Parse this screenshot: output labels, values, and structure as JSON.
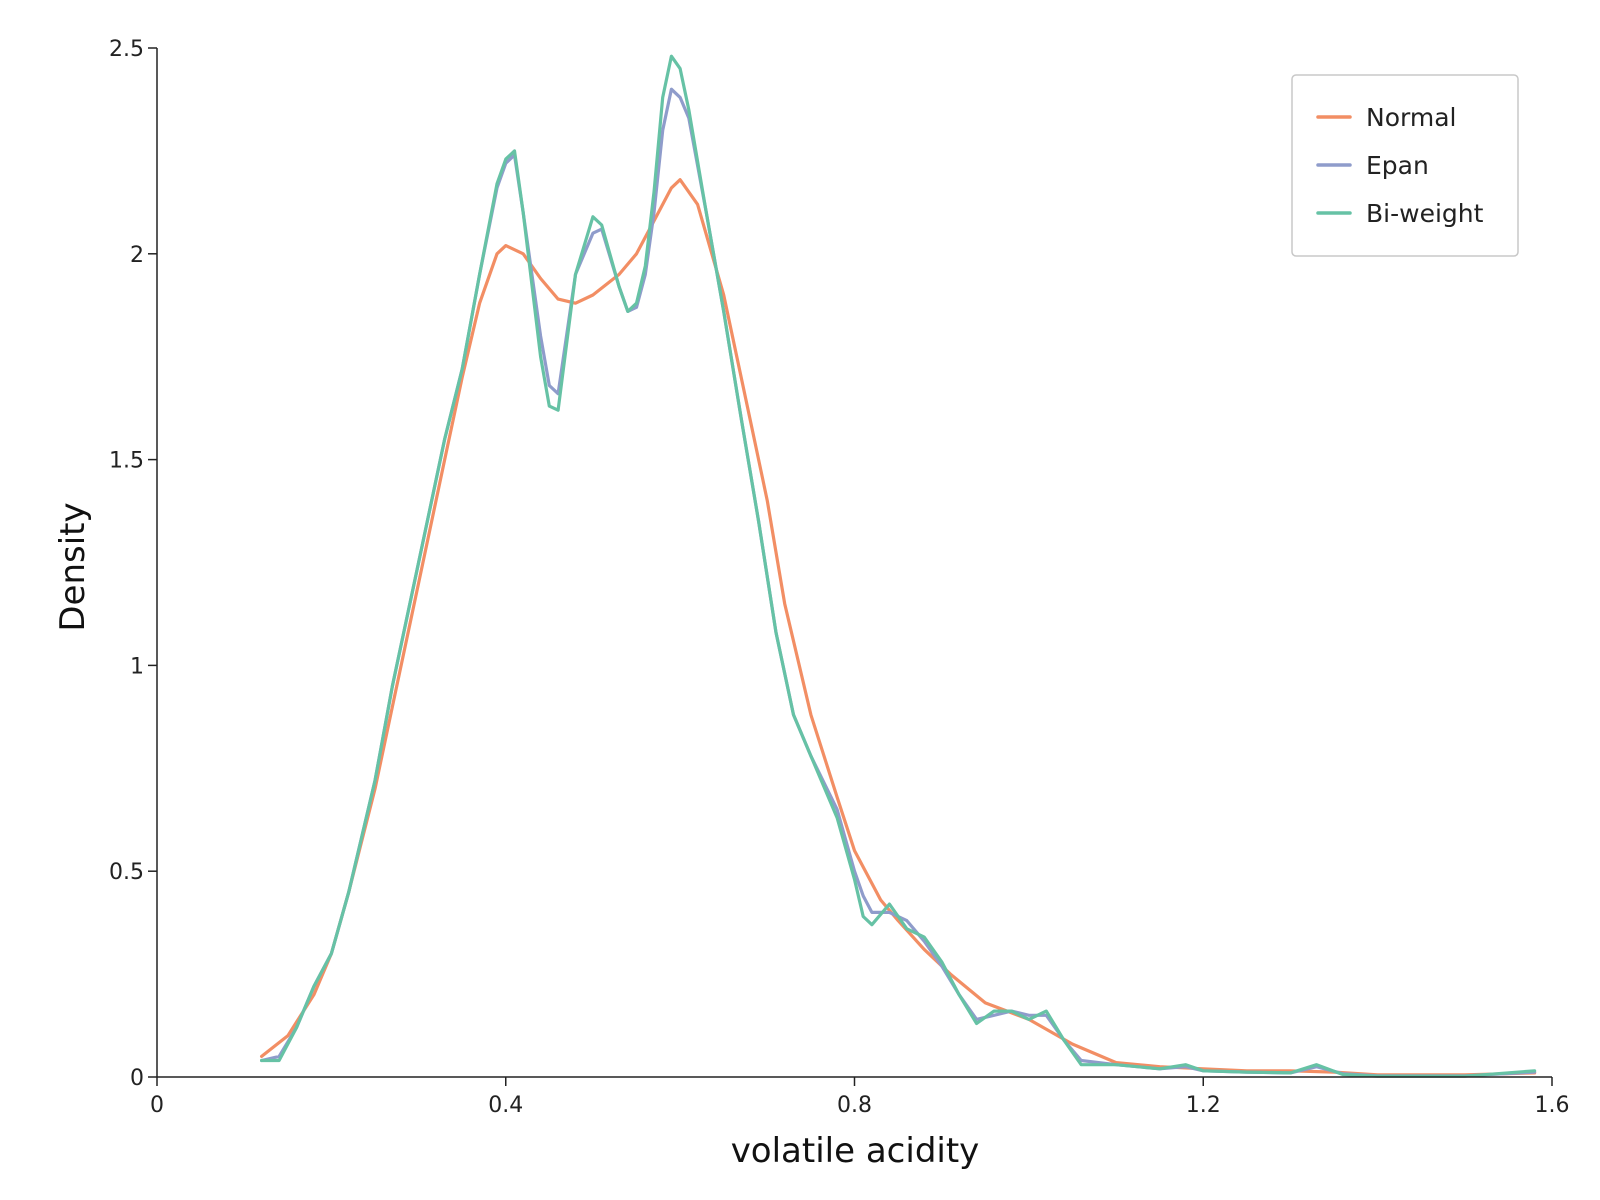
{
  "chart_data": {
    "type": "line",
    "title": "",
    "xlabel": "volatile acidity",
    "ylabel": "Density",
    "xlim": [
      0,
      1.6
    ],
    "ylim": [
      0,
      2.5
    ],
    "x_ticks": [
      0,
      0.4,
      0.8,
      1.2,
      1.6
    ],
    "x_tick_labels": [
      "0",
      "0.4",
      "0.8",
      "1.2",
      "1.6"
    ],
    "y_ticks": [
      0,
      0.5,
      1,
      1.5,
      2,
      2.5
    ],
    "y_tick_labels": [
      "0",
      "0.5",
      "1",
      "1.5",
      "2",
      "2.5"
    ],
    "grid": false,
    "legend_position": "top-right",
    "series": [
      {
        "name": "Normal",
        "color": "#f28e64",
        "points": [
          [
            0.12,
            0.05
          ],
          [
            0.15,
            0.1
          ],
          [
            0.18,
            0.2
          ],
          [
            0.2,
            0.3
          ],
          [
            0.22,
            0.45
          ],
          [
            0.25,
            0.7
          ],
          [
            0.27,
            0.9
          ],
          [
            0.3,
            1.2
          ],
          [
            0.33,
            1.5
          ],
          [
            0.35,
            1.7
          ],
          [
            0.37,
            1.88
          ],
          [
            0.39,
            2.0
          ],
          [
            0.4,
            2.02
          ],
          [
            0.42,
            2.0
          ],
          [
            0.44,
            1.94
          ],
          [
            0.46,
            1.89
          ],
          [
            0.48,
            1.88
          ],
          [
            0.5,
            1.9
          ],
          [
            0.53,
            1.95
          ],
          [
            0.55,
            2.0
          ],
          [
            0.57,
            2.08
          ],
          [
            0.59,
            2.16
          ],
          [
            0.6,
            2.18
          ],
          [
            0.62,
            2.12
          ],
          [
            0.65,
            1.9
          ],
          [
            0.68,
            1.6
          ],
          [
            0.7,
            1.4
          ],
          [
            0.72,
            1.15
          ],
          [
            0.75,
            0.88
          ],
          [
            0.78,
            0.68
          ],
          [
            0.8,
            0.55
          ],
          [
            0.83,
            0.43
          ],
          [
            0.85,
            0.38
          ],
          [
            0.88,
            0.31
          ],
          [
            0.91,
            0.25
          ],
          [
            0.95,
            0.18
          ],
          [
            1.0,
            0.14
          ],
          [
            1.05,
            0.08
          ],
          [
            1.1,
            0.035
          ],
          [
            1.15,
            0.025
          ],
          [
            1.2,
            0.02
          ],
          [
            1.25,
            0.015
          ],
          [
            1.3,
            0.015
          ],
          [
            1.35,
            0.012
          ],
          [
            1.4,
            0.005
          ],
          [
            1.5,
            0.005
          ],
          [
            1.58,
            0.01
          ]
        ]
      },
      {
        "name": "Epan",
        "color": "#8f9ccb",
        "points": [
          [
            0.12,
            0.04
          ],
          [
            0.14,
            0.05
          ],
          [
            0.16,
            0.12
          ],
          [
            0.18,
            0.22
          ],
          [
            0.2,
            0.3
          ],
          [
            0.22,
            0.45
          ],
          [
            0.25,
            0.72
          ],
          [
            0.27,
            0.95
          ],
          [
            0.3,
            1.25
          ],
          [
            0.33,
            1.55
          ],
          [
            0.35,
            1.72
          ],
          [
            0.37,
            1.95
          ],
          [
            0.39,
            2.16
          ],
          [
            0.4,
            2.22
          ],
          [
            0.41,
            2.24
          ],
          [
            0.42,
            2.1
          ],
          [
            0.44,
            1.8
          ],
          [
            0.45,
            1.68
          ],
          [
            0.46,
            1.66
          ],
          [
            0.48,
            1.95
          ],
          [
            0.5,
            2.05
          ],
          [
            0.51,
            2.06
          ],
          [
            0.53,
            1.92
          ],
          [
            0.54,
            1.86
          ],
          [
            0.55,
            1.87
          ],
          [
            0.56,
            1.95
          ],
          [
            0.57,
            2.1
          ],
          [
            0.58,
            2.3
          ],
          [
            0.59,
            2.4
          ],
          [
            0.6,
            2.38
          ],
          [
            0.61,
            2.33
          ],
          [
            0.63,
            2.1
          ],
          [
            0.65,
            1.86
          ],
          [
            0.67,
            1.6
          ],
          [
            0.69,
            1.35
          ],
          [
            0.71,
            1.08
          ],
          [
            0.73,
            0.88
          ],
          [
            0.75,
            0.78
          ],
          [
            0.78,
            0.65
          ],
          [
            0.8,
            0.5
          ],
          [
            0.81,
            0.44
          ],
          [
            0.82,
            0.4
          ],
          [
            0.84,
            0.4
          ],
          [
            0.86,
            0.38
          ],
          [
            0.88,
            0.33
          ],
          [
            0.9,
            0.27
          ],
          [
            0.92,
            0.2
          ],
          [
            0.94,
            0.14
          ],
          [
            0.96,
            0.15
          ],
          [
            0.98,
            0.16
          ],
          [
            1.0,
            0.15
          ],
          [
            1.02,
            0.15
          ],
          [
            1.04,
            0.09
          ],
          [
            1.06,
            0.04
          ],
          [
            1.1,
            0.03
          ],
          [
            1.15,
            0.02
          ],
          [
            1.18,
            0.025
          ],
          [
            1.2,
            0.015
          ],
          [
            1.25,
            0.012
          ],
          [
            1.3,
            0.01
          ],
          [
            1.33,
            0.025
          ],
          [
            1.36,
            0.008
          ],
          [
            1.4,
            0.003
          ],
          [
            1.5,
            0.003
          ],
          [
            1.58,
            0.012
          ]
        ]
      },
      {
        "name": "Bi-weight",
        "color": "#66c2a5",
        "points": [
          [
            0.12,
            0.04
          ],
          [
            0.14,
            0.04
          ],
          [
            0.16,
            0.12
          ],
          [
            0.18,
            0.22
          ],
          [
            0.2,
            0.3
          ],
          [
            0.22,
            0.45
          ],
          [
            0.25,
            0.72
          ],
          [
            0.27,
            0.95
          ],
          [
            0.3,
            1.25
          ],
          [
            0.33,
            1.55
          ],
          [
            0.35,
            1.72
          ],
          [
            0.37,
            1.95
          ],
          [
            0.39,
            2.17
          ],
          [
            0.4,
            2.23
          ],
          [
            0.41,
            2.25
          ],
          [
            0.42,
            2.1
          ],
          [
            0.44,
            1.75
          ],
          [
            0.45,
            1.63
          ],
          [
            0.46,
            1.62
          ],
          [
            0.48,
            1.95
          ],
          [
            0.5,
            2.09
          ],
          [
            0.51,
            2.07
          ],
          [
            0.53,
            1.92
          ],
          [
            0.54,
            1.86
          ],
          [
            0.55,
            1.88
          ],
          [
            0.56,
            1.97
          ],
          [
            0.57,
            2.15
          ],
          [
            0.58,
            2.38
          ],
          [
            0.59,
            2.48
          ],
          [
            0.6,
            2.45
          ],
          [
            0.61,
            2.35
          ],
          [
            0.63,
            2.1
          ],
          [
            0.65,
            1.86
          ],
          [
            0.67,
            1.6
          ],
          [
            0.69,
            1.35
          ],
          [
            0.71,
            1.08
          ],
          [
            0.73,
            0.88
          ],
          [
            0.75,
            0.78
          ],
          [
            0.78,
            0.63
          ],
          [
            0.8,
            0.48
          ],
          [
            0.81,
            0.39
          ],
          [
            0.82,
            0.37
          ],
          [
            0.84,
            0.42
          ],
          [
            0.86,
            0.36
          ],
          [
            0.88,
            0.34
          ],
          [
            0.9,
            0.28
          ],
          [
            0.92,
            0.2
          ],
          [
            0.94,
            0.13
          ],
          [
            0.96,
            0.16
          ],
          [
            0.98,
            0.16
          ],
          [
            1.0,
            0.14
          ],
          [
            1.02,
            0.16
          ],
          [
            1.04,
            0.09
          ],
          [
            1.06,
            0.03
          ],
          [
            1.1,
            0.03
          ],
          [
            1.15,
            0.02
          ],
          [
            1.18,
            0.03
          ],
          [
            1.2,
            0.015
          ],
          [
            1.25,
            0.012
          ],
          [
            1.3,
            0.01
          ],
          [
            1.33,
            0.03
          ],
          [
            1.36,
            0.006
          ],
          [
            1.4,
            0.002
          ],
          [
            1.5,
            0.002
          ],
          [
            1.58,
            0.015
          ]
        ]
      }
    ]
  }
}
